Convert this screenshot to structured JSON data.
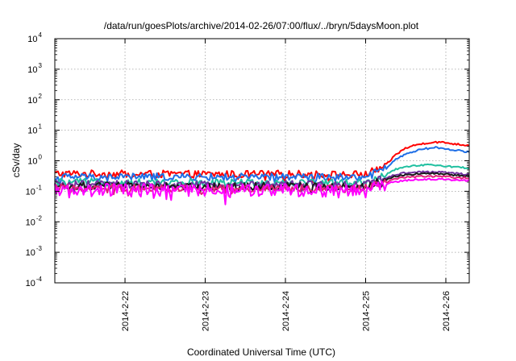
{
  "chart_data": {
    "type": "line",
    "title": "/data/run/goesPlots/archive/2014-02-26/07:00/flux/../bryn/5daysMoon.plot",
    "xlabel": "Coordinated Universal Time (UTC)",
    "ylabel": "cSv/day",
    "yscale": "log",
    "ylim": [
      0.0001,
      10000
    ],
    "xlim": [
      "2014-02-21T03:00",
      "2014-02-26T07:00"
    ],
    "grid": true,
    "legend": "none",
    "y_ticks": [
      {
        "base": "10",
        "exp": "-4"
      },
      {
        "base": "10",
        "exp": "-3"
      },
      {
        "base": "10",
        "exp": "-2"
      },
      {
        "base": "10",
        "exp": "-1"
      },
      {
        "base": "10",
        "exp": "0"
      },
      {
        "base": "10",
        "exp": "1"
      },
      {
        "base": "10",
        "exp": "2"
      },
      {
        "base": "10",
        "exp": "3"
      },
      {
        "base": "10",
        "exp": "4"
      }
    ],
    "x_ticks": [
      "2014-2-22",
      "2014-2-23",
      "2014-2-24",
      "2014-2-25",
      "2014-2-26"
    ],
    "x_tick_dates": [
      "2014-02-22T00:00",
      "2014-02-23T00:00",
      "2014-02-24T00:00",
      "2014-02-25T00:00",
      "2014-02-26T00:00"
    ],
    "series": [
      {
        "color": "#ff0000",
        "x": [
          "2014-02-21T03:00",
          "2014-02-22T00:00",
          "2014-02-23T00:00",
          "2014-02-24T00:00",
          "2014-02-24T18:00",
          "2014-02-25T00:00",
          "2014-02-25T06:00",
          "2014-02-25T09:00",
          "2014-02-25T12:00",
          "2014-02-25T15:00",
          "2014-02-25T18:00",
          "2014-02-25T21:00",
          "2014-02-26T00:00",
          "2014-02-26T03:00",
          "2014-02-26T07:00"
        ],
        "values": [
          0.38,
          0.37,
          0.36,
          0.37,
          0.35,
          0.36,
          0.7,
          1.6,
          2.6,
          3.3,
          3.8,
          4.1,
          3.9,
          3.5,
          3.2
        ]
      },
      {
        "color": "#1f6fe6",
        "x": [
          "2014-02-21T03:00",
          "2014-02-22T00:00",
          "2014-02-23T00:00",
          "2014-02-24T00:00",
          "2014-02-24T18:00",
          "2014-02-25T00:00",
          "2014-02-25T06:00",
          "2014-02-25T09:00",
          "2014-02-25T12:00",
          "2014-02-25T15:00",
          "2014-02-25T18:00",
          "2014-02-25T21:00",
          "2014-02-26T00:00",
          "2014-02-26T03:00",
          "2014-02-26T07:00"
        ],
        "values": [
          0.3,
          0.3,
          0.29,
          0.3,
          0.29,
          0.3,
          0.55,
          1.1,
          1.7,
          2.1,
          2.5,
          2.7,
          2.5,
          2.2,
          1.9
        ]
      },
      {
        "color": "#20c0a0",
        "x": [
          "2014-02-21T03:00",
          "2014-02-22T00:00",
          "2014-02-23T00:00",
          "2014-02-24T00:00",
          "2014-02-24T18:00",
          "2014-02-25T00:00",
          "2014-02-25T06:00",
          "2014-02-25T09:00",
          "2014-02-25T12:00",
          "2014-02-25T15:00",
          "2014-02-25T18:00",
          "2014-02-25T21:00",
          "2014-02-26T00:00",
          "2014-02-26T03:00",
          "2014-02-26T07:00"
        ],
        "values": [
          0.2,
          0.2,
          0.19,
          0.2,
          0.19,
          0.2,
          0.35,
          0.52,
          0.62,
          0.68,
          0.72,
          0.72,
          0.68,
          0.62,
          0.58
        ]
      },
      {
        "color": "#7030a0",
        "x": [
          "2014-02-21T03:00",
          "2014-02-22T00:00",
          "2014-02-23T00:00",
          "2014-02-24T00:00",
          "2014-02-24T18:00",
          "2014-02-25T00:00",
          "2014-02-25T06:00",
          "2014-02-25T09:00",
          "2014-02-25T12:00",
          "2014-02-25T15:00",
          "2014-02-25T18:00",
          "2014-02-25T21:00",
          "2014-02-26T00:00",
          "2014-02-26T03:00",
          "2014-02-26T07:00"
        ],
        "values": [
          0.17,
          0.17,
          0.16,
          0.17,
          0.16,
          0.17,
          0.28,
          0.36,
          0.4,
          0.42,
          0.43,
          0.43,
          0.41,
          0.38,
          0.36
        ]
      },
      {
        "color": "#1a1a1a",
        "x": [
          "2014-02-21T03:00",
          "2014-02-22T00:00",
          "2014-02-23T00:00",
          "2014-02-24T00:00",
          "2014-02-24T18:00",
          "2014-02-25T00:00",
          "2014-02-25T06:00",
          "2014-02-25T09:00",
          "2014-02-25T12:00",
          "2014-02-25T15:00",
          "2014-02-25T18:00",
          "2014-02-25T21:00",
          "2014-02-26T00:00",
          "2014-02-26T03:00",
          "2014-02-26T07:00"
        ],
        "values": [
          0.15,
          0.15,
          0.14,
          0.15,
          0.14,
          0.15,
          0.24,
          0.31,
          0.35,
          0.37,
          0.38,
          0.38,
          0.36,
          0.34,
          0.32
        ]
      },
      {
        "color": "#e0207a",
        "x": [
          "2014-02-21T03:00",
          "2014-02-22T00:00",
          "2014-02-23T00:00",
          "2014-02-24T00:00",
          "2014-02-24T18:00",
          "2014-02-25T00:00",
          "2014-02-25T06:00",
          "2014-02-25T09:00",
          "2014-02-25T12:00",
          "2014-02-25T15:00",
          "2014-02-25T18:00",
          "2014-02-25T21:00",
          "2014-02-26T00:00",
          "2014-02-26T03:00",
          "2014-02-26T07:00"
        ],
        "values": [
          0.13,
          0.13,
          0.12,
          0.13,
          0.12,
          0.13,
          0.2,
          0.26,
          0.29,
          0.3,
          0.31,
          0.31,
          0.3,
          0.28,
          0.27
        ]
      },
      {
        "color": "#ff00ff",
        "x": [
          "2014-02-21T03:00",
          "2014-02-22T00:00",
          "2014-02-23T00:00",
          "2014-02-24T00:00",
          "2014-02-24T18:00",
          "2014-02-25T00:00",
          "2014-02-25T06:00",
          "2014-02-25T09:00",
          "2014-02-25T12:00",
          "2014-02-25T15:00",
          "2014-02-25T18:00",
          "2014-02-25T21:00",
          "2014-02-26T00:00",
          "2014-02-26T03:00",
          "2014-02-26T07:00"
        ],
        "values": [
          0.11,
          0.11,
          0.1,
          0.11,
          0.1,
          0.11,
          0.17,
          0.21,
          0.23,
          0.24,
          0.25,
          0.25,
          0.24,
          0.23,
          0.22
        ]
      }
    ]
  }
}
